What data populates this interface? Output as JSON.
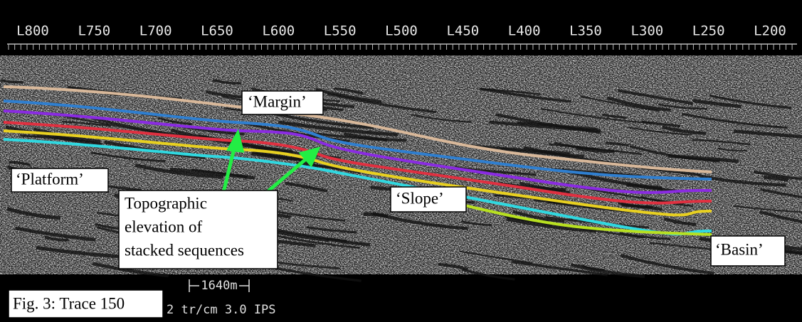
{
  "top_axis": {
    "labels": [
      "L800",
      "L750",
      "L700",
      "L650",
      "L600",
      "L550",
      "L500",
      "L450",
      "L400",
      "L350",
      "L300",
      "L250",
      "L200"
    ]
  },
  "annotations": {
    "margin": "‘Margin’",
    "platform": "‘Platform’",
    "slope": "‘Slope’",
    "basin": "‘Basin’",
    "elevation": [
      "Topographic",
      "elevation of",
      "stacked sequences"
    ]
  },
  "scale_bar": "1640m",
  "footer": "2 tr/cm 3.0 IPS",
  "caption": "Fig. 3: Trace 150"
}
